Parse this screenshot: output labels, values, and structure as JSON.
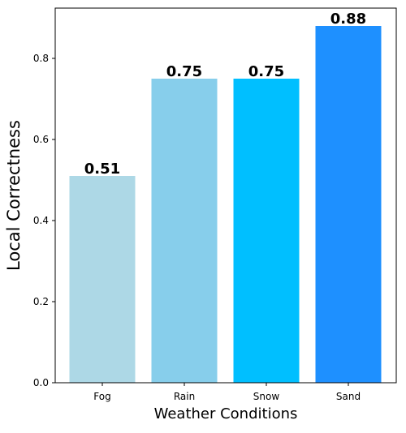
{
  "chart_data": {
    "type": "bar",
    "categories": [
      "Fog",
      "Rain",
      "Snow",
      "Sand"
    ],
    "values": [
      0.51,
      0.75,
      0.75,
      0.88
    ],
    "value_labels": [
      "0.51",
      "0.75",
      "0.75",
      "0.88"
    ],
    "colors": [
      "#add8e6",
      "#87ceeb",
      "#00bfff",
      "#1e90ff"
    ],
    "title": "",
    "xlabel": "Weather Conditions",
    "ylabel": "Local Correctness",
    "ylim": [
      0,
      0.924
    ],
    "yticks": [
      0.0,
      0.2,
      0.4,
      0.6,
      0.8
    ],
    "ytick_labels": [
      "0.0",
      "0.2",
      "0.4",
      "0.6",
      "0.8"
    ],
    "grid": false,
    "legend": "none"
  }
}
